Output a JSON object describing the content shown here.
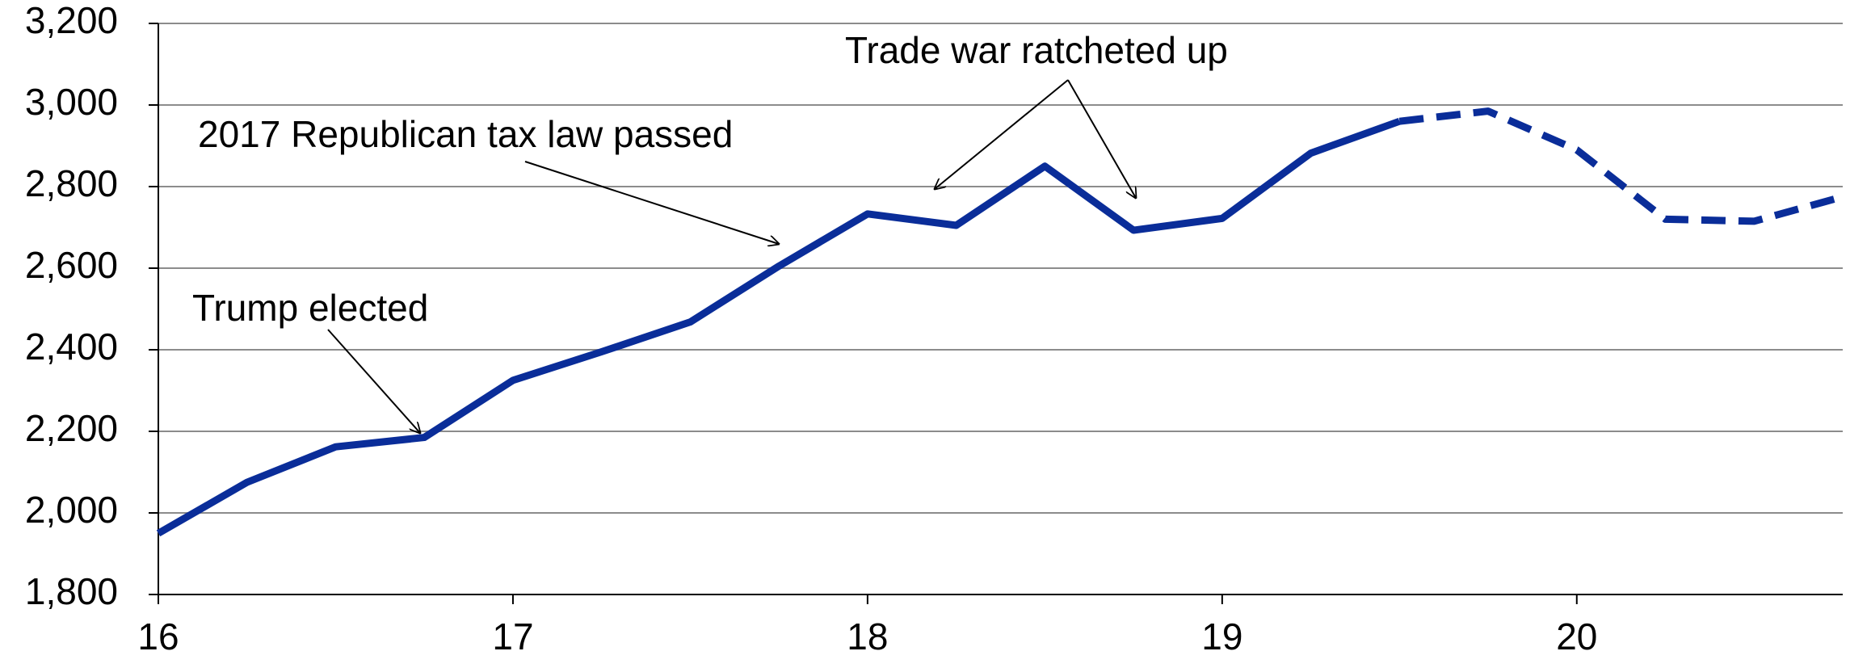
{
  "chart_data": {
    "type": "line",
    "x": [
      16,
      16.25,
      16.5,
      16.75,
      17,
      17.25,
      17.5,
      17.75,
      18,
      18.25,
      18.5,
      18.75,
      19,
      19.25,
      19.5,
      19.75,
      20,
      20.25,
      20.5,
      20.75
    ],
    "series": [
      {
        "color": "#0a2d99",
        "dashed": false,
        "values": [
          1950,
          2075,
          2162,
          2185,
          2325,
          2395,
          2468,
          2605,
          2733,
          2705,
          2850,
          2693,
          2722,
          2882,
          2960,
          null,
          null,
          null,
          null,
          null
        ]
      },
      {
        "color": "#0a2d99",
        "dashed": true,
        "values": [
          null,
          null,
          null,
          null,
          null,
          null,
          null,
          null,
          null,
          null,
          null,
          null,
          null,
          null,
          2960,
          2985,
          2890,
          2720,
          2715,
          2775
        ]
      }
    ],
    "xlim": [
      16,
      20.75
    ],
    "xticks": [
      16,
      17,
      18,
      19,
      20
    ],
    "ylim": [
      1800,
      3200
    ],
    "yticks": [
      {
        "value": 1800,
        "label": "1,800"
      },
      {
        "value": 2000,
        "label": "2,000"
      },
      {
        "value": 2200,
        "label": "2,200"
      },
      {
        "value": 2400,
        "label": "2,400"
      },
      {
        "value": 2600,
        "label": "2,600"
      },
      {
        "value": 2800,
        "label": "2,800"
      },
      {
        "value": 3000,
        "label": "3,000"
      },
      {
        "value": 3200,
        "label": "3,200"
      }
    ],
    "grid": true,
    "annotations": [
      "Trump elected",
      "2017 Republican tax law passed",
      "Trade war ratcheted up"
    ]
  }
}
